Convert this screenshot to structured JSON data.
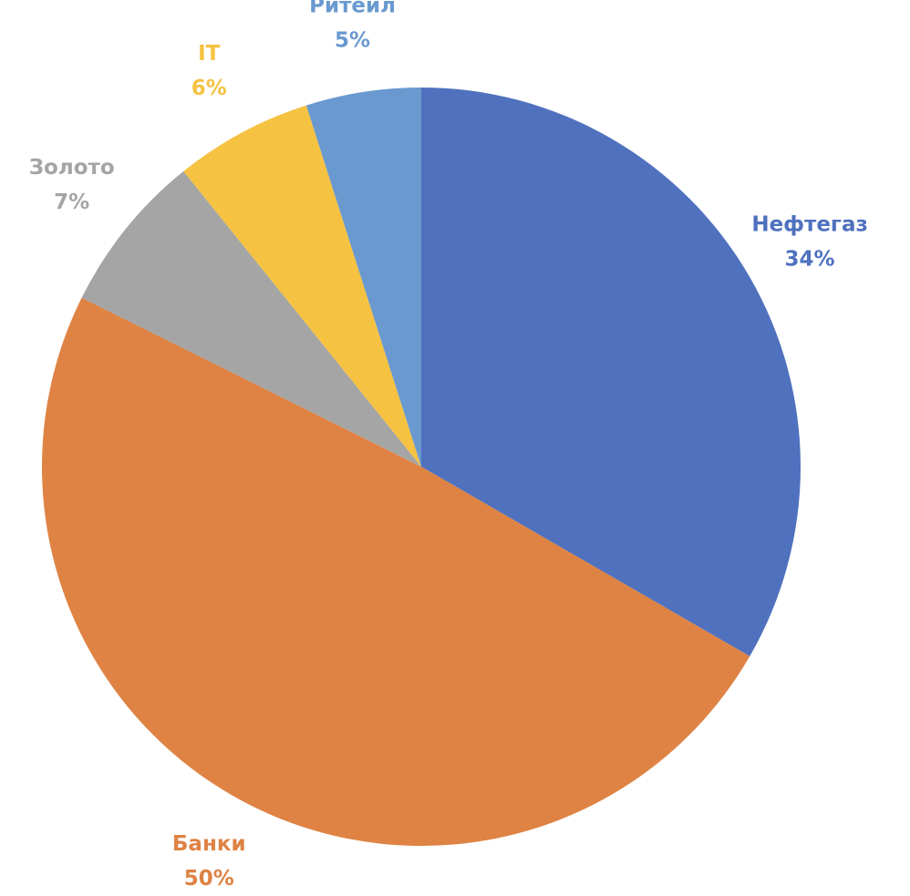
{
  "chart_data": {
    "type": "pie",
    "categories": [
      "Нефтегаз",
      "Банки",
      "Золото",
      "IT",
      "Ритейл"
    ],
    "values": [
      34,
      50,
      7,
      6,
      5
    ],
    "value_labels": [
      "34%",
      "50%",
      "7%",
      "6%",
      "5%"
    ],
    "colors": [
      "#4f71be",
      "#de8344",
      "#a5a5a5",
      "#f5c242",
      "#6a99d0"
    ]
  }
}
